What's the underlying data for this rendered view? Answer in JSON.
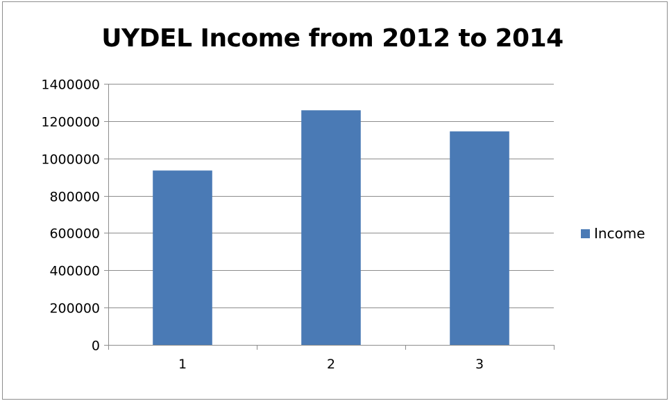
{
  "chart_data": {
    "type": "bar",
    "title": "UYDEL Income from 2012 to 2014",
    "xlabel": "",
    "ylabel": "",
    "categories": [
      "1",
      "2",
      "3"
    ],
    "series": [
      {
        "name": "Income",
        "values": [
          935000,
          1258000,
          1145000
        ]
      }
    ],
    "ylim": [
      0,
      1400000
    ],
    "yticks": [
      0,
      200000,
      400000,
      600000,
      800000,
      1000000,
      1200000,
      1400000
    ],
    "ytick_labels": [
      "0",
      "200000",
      "400000",
      "600000",
      "800000",
      "1000000",
      "1200000",
      "1400000"
    ],
    "grid": true,
    "legend_position": "right",
    "colors": {
      "bar": "#4a7ab5",
      "gridline": "#8c8c8c",
      "axis": "#8c8c8c",
      "frame": "#8c8c8c"
    }
  }
}
